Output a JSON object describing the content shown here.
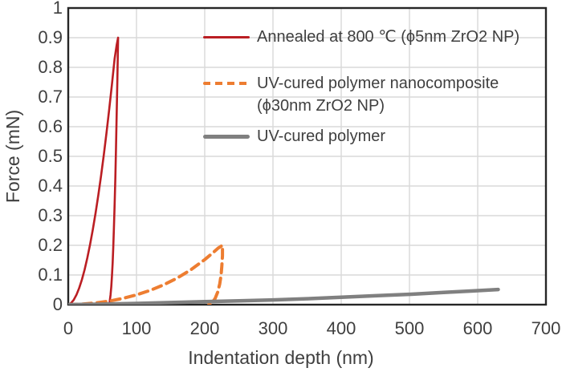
{
  "chart_data": {
    "type": "line",
    "title": "",
    "xlabel": "Indentation depth (nm)",
    "ylabel": "Force (mN)",
    "xlim": [
      0,
      700
    ],
    "ylim": [
      0,
      1
    ],
    "grid": true,
    "legend_position": "upper right",
    "x_ticks": {
      "values": [
        0,
        100,
        200,
        300,
        400,
        500,
        600,
        700
      ],
      "labels": [
        "0",
        "100",
        "200",
        "300",
        "400",
        "500",
        "600",
        "700"
      ]
    },
    "y_ticks": {
      "values": [
        0,
        0.1,
        0.2,
        0.3,
        0.4,
        0.5,
        0.6,
        0.7,
        0.8,
        0.9,
        1
      ],
      "labels": [
        "0",
        "0.1",
        "0.2",
        "0.3",
        "0.4",
        "0.5",
        "0.6",
        "0.7",
        "0.8",
        "0.9",
        "1"
      ]
    },
    "colors": {
      "annealed": "#bb1e23",
      "nanocomposite": "#ed7d31",
      "polymer": "#808080",
      "gridline": "#d9d9d9",
      "frame": "#262626",
      "text": "#3f3f3f"
    },
    "series": [
      {
        "id": "annealed",
        "name": "Annealed at 800 ℃ (ϕ5nm ZrO2 NP)",
        "legend_lines": [
          "Annealed at 800 ℃ (ϕ5nm ZrO2 NP)"
        ],
        "color": "#bb1e23",
        "line_style": "solid",
        "line_width": 2.6,
        "peak": {
          "depth_nm": 73,
          "force_mN": 0.9
        },
        "residual_depth_nm": 60,
        "points": [
          [
            0,
            0
          ],
          [
            4,
            0.005
          ],
          [
            8,
            0.016
          ],
          [
            12,
            0.033
          ],
          [
            16,
            0.056
          ],
          [
            20,
            0.084
          ],
          [
            24,
            0.118
          ],
          [
            28,
            0.158
          ],
          [
            32,
            0.203
          ],
          [
            36,
            0.253
          ],
          [
            40,
            0.308
          ],
          [
            44,
            0.368
          ],
          [
            48,
            0.433
          ],
          [
            52,
            0.503
          ],
          [
            56,
            0.578
          ],
          [
            60,
            0.658
          ],
          [
            64,
            0.742
          ],
          [
            68,
            0.83
          ],
          [
            71,
            0.875
          ],
          [
            73,
            0.9
          ],
          [
            72,
            0.76
          ],
          [
            71,
            0.64
          ],
          [
            70,
            0.53
          ],
          [
            69,
            0.43
          ],
          [
            68,
            0.34
          ],
          [
            67,
            0.26
          ],
          [
            66,
            0.195
          ],
          [
            65,
            0.14
          ],
          [
            64,
            0.095
          ],
          [
            63,
            0.06
          ],
          [
            62,
            0.033
          ],
          [
            61,
            0.014
          ],
          [
            60.3,
            0.003
          ],
          [
            60,
            0
          ]
        ]
      },
      {
        "id": "nanocomposite",
        "name": "UV-cured polymer nanocomposite (ϕ30nm ZrO2 NP)",
        "legend_lines": [
          "UV-cured polymer nanocomposite",
          "(ϕ30nm ZrO2 NP)"
        ],
        "color": "#ed7d31",
        "line_style": "dashed",
        "line_width": 4,
        "peak": {
          "depth_nm": 226,
          "force_mN": 0.2
        },
        "residual_depth_nm": 206,
        "points": [
          [
            0,
            0
          ],
          [
            20,
            0.002
          ],
          [
            40,
            0.006
          ],
          [
            60,
            0.012
          ],
          [
            80,
            0.021
          ],
          [
            100,
            0.033
          ],
          [
            120,
            0.048
          ],
          [
            140,
            0.067
          ],
          [
            160,
            0.09
          ],
          [
            180,
            0.118
          ],
          [
            200,
            0.152
          ],
          [
            212,
            0.175
          ],
          [
            220,
            0.191
          ],
          [
            226,
            0.2
          ],
          [
            226,
            0.165
          ],
          [
            225,
            0.13
          ],
          [
            224,
            0.1
          ],
          [
            222,
            0.07
          ],
          [
            219,
            0.042
          ],
          [
            215,
            0.02
          ],
          [
            211,
            0.008
          ],
          [
            208,
            0.002
          ],
          [
            206,
            0
          ]
        ]
      },
      {
        "id": "polymer",
        "name": "UV-cured polymer",
        "legend_lines": [
          "UV-cured polymer"
        ],
        "color": "#808080",
        "line_style": "solid",
        "line_width": 4.5,
        "peak": {
          "depth_nm": 630,
          "force_mN": 0.05
        },
        "points": [
          [
            0,
            0
          ],
          [
            50,
            0.0015
          ],
          [
            100,
            0.004
          ],
          [
            150,
            0.007
          ],
          [
            200,
            0.01
          ],
          [
            250,
            0.013
          ],
          [
            300,
            0.016
          ],
          [
            350,
            0.02
          ],
          [
            400,
            0.025
          ],
          [
            450,
            0.03
          ],
          [
            500,
            0.035
          ],
          [
            550,
            0.041
          ],
          [
            590,
            0.046
          ],
          [
            630,
            0.051
          ]
        ]
      }
    ]
  }
}
